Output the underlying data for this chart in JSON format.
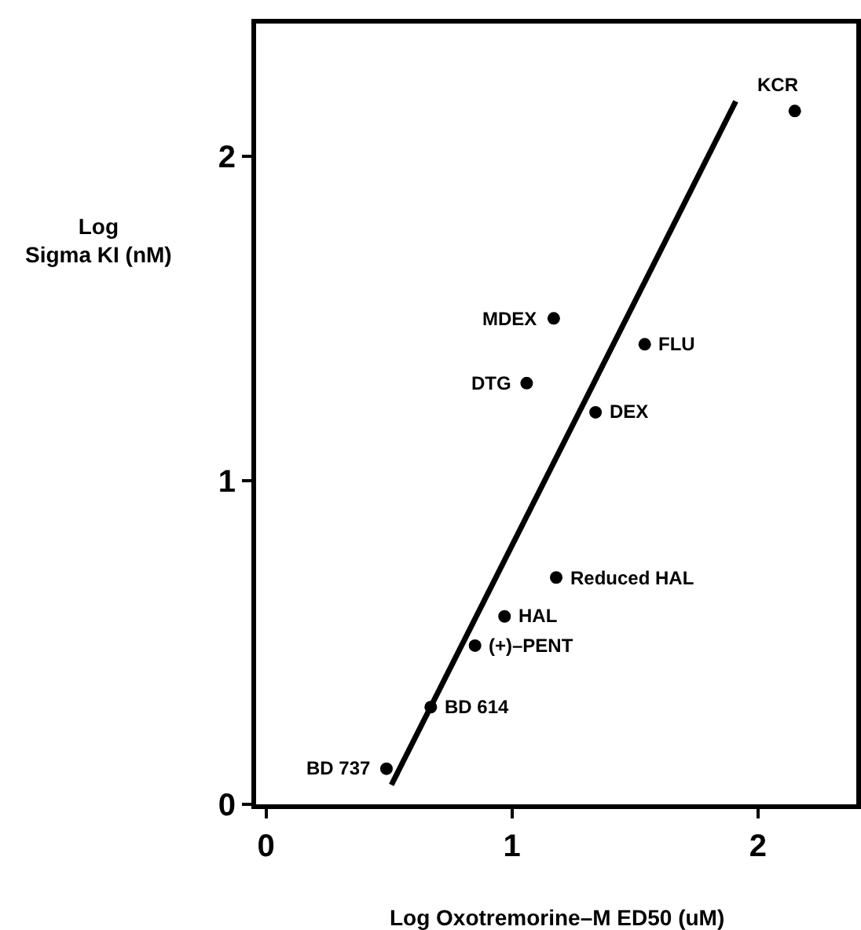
{
  "chart_data": {
    "type": "scatter",
    "xlabel": "Log Oxotremorine–M ED50 (uM)",
    "ylabel": "Log\nSigma KI (nM)",
    "xlim": [
      -0.04,
      2.4
    ],
    "ylim": [
      0,
      2.41
    ],
    "xticks": [
      0,
      1,
      2
    ],
    "yticks": [
      0,
      1,
      2
    ],
    "marker": "circle",
    "series": [
      {
        "color": "#000000",
        "x": [
          2.15,
          1.17,
          1.54,
          1.06,
          1.34,
          1.18,
          0.97,
          0.85,
          0.67,
          0.49
        ],
        "values": [
          2.14,
          1.5,
          1.42,
          1.3,
          1.21,
          0.7,
          0.58,
          0.49,
          0.3,
          0.11
        ]
      },
      {
        "type": "line",
        "color": "#000000",
        "marker": "none",
        "line_style": "solid",
        "x": [
          0.51,
          1.91
        ],
        "values": [
          0.06,
          2.17
        ]
      }
    ],
    "annotations": [
      {
        "text": "KCR",
        "x": 2.15,
        "y": 2.14
      },
      {
        "text": "MDEX",
        "x": 1.17,
        "y": 1.5
      },
      {
        "text": "FLU",
        "x": 1.54,
        "y": 1.42
      },
      {
        "text": "DTG",
        "x": 1.06,
        "y": 1.3
      },
      {
        "text": "DEX",
        "x": 1.34,
        "y": 1.21
      },
      {
        "text": "Reduced HAL",
        "x": 1.18,
        "y": 0.7
      },
      {
        "text": "HAL",
        "x": 0.97,
        "y": 0.58
      },
      {
        "text": "(+)–PENT",
        "x": 0.85,
        "y": 0.49
      },
      {
        "text": "BD 614",
        "x": 0.67,
        "y": 0.3
      },
      {
        "text": "BD 737",
        "x": 0.49,
        "y": 0.11
      }
    ]
  }
}
